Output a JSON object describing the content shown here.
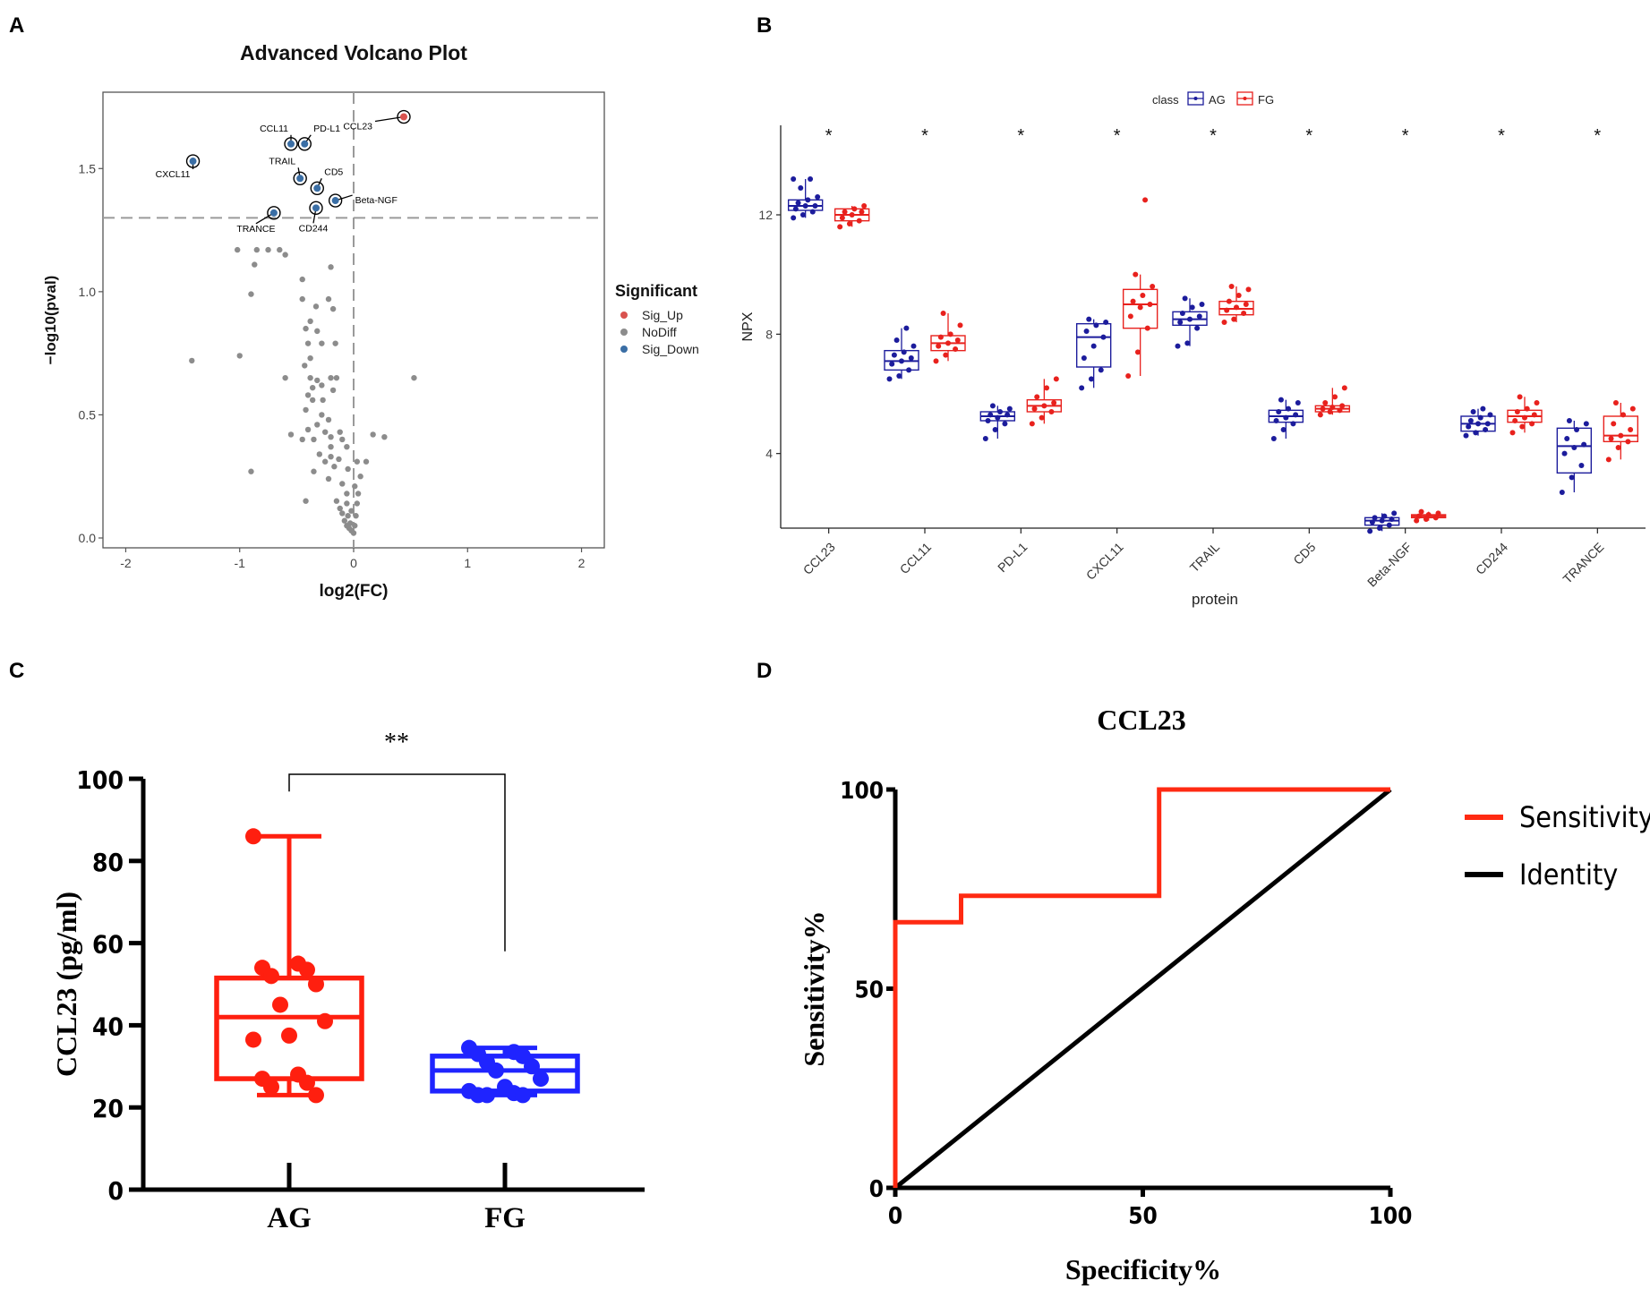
{
  "panels": {
    "A": "A",
    "B": "B",
    "C": "C",
    "D": "D"
  },
  "chart_data": [
    {
      "panel": "A",
      "type": "scatter",
      "title": "Advanced Volcano Plot",
      "xlabel": "log2(FC)",
      "ylabel": "−log10(pval)",
      "xlim": [
        -2.2,
        2.2
      ],
      "ylim": [
        -0.04,
        1.81
      ],
      "xticks": [
        -2,
        -1,
        0,
        1,
        2
      ],
      "yticks": [
        0.0,
        0.5,
        1.0,
        1.5
      ],
      "ytick_labels": [
        "0.0",
        "0.5",
        "1.0",
        "1.5"
      ],
      "hline": 1.3,
      "vline": 0,
      "legend": {
        "title": "Significant",
        "entries": [
          {
            "label": "Sig_Up",
            "color": "#d9534f"
          },
          {
            "label": "NoDiff",
            "color": "#8c8c8c"
          },
          {
            "label": "Sig_Down",
            "color": "#3a6ea5"
          }
        ]
      },
      "labeled_points": [
        {
          "label": "CCL23",
          "x": 0.44,
          "y": 1.71,
          "group": "Sig_Up"
        },
        {
          "label": "CCL11",
          "x": -0.55,
          "y": 1.6,
          "group": "Sig_Down"
        },
        {
          "label": "PD-L1",
          "x": -0.43,
          "y": 1.6,
          "group": "Sig_Down"
        },
        {
          "label": "CXCL11",
          "x": -1.41,
          "y": 1.53,
          "group": "Sig_Down"
        },
        {
          "label": "TRAIL",
          "x": -0.47,
          "y": 1.46,
          "group": "Sig_Down"
        },
        {
          "label": "CD5",
          "x": -0.32,
          "y": 1.42,
          "group": "Sig_Down"
        },
        {
          "label": "Beta-NGF",
          "x": -0.16,
          "y": 1.37,
          "group": "Sig_Down"
        },
        {
          "label": "CD244",
          "x": -0.33,
          "y": 1.34,
          "group": "Sig_Down"
        },
        {
          "label": "TRANCE",
          "x": -0.7,
          "y": 1.32,
          "group": "Sig_Down"
        }
      ],
      "nodiff_points": [
        [
          -1.02,
          1.17
        ],
        [
          -0.85,
          1.17
        ],
        [
          -0.75,
          1.17
        ],
        [
          -0.65,
          1.17
        ],
        [
          -0.6,
          1.15
        ],
        [
          -0.87,
          1.11
        ],
        [
          -0.2,
          1.1
        ],
        [
          -0.45,
          1.05
        ],
        [
          -0.9,
          0.99
        ],
        [
          -0.45,
          0.97
        ],
        [
          -0.22,
          0.97
        ],
        [
          -0.33,
          0.94
        ],
        [
          -0.18,
          0.93
        ],
        [
          -0.38,
          0.88
        ],
        [
          -0.42,
          0.85
        ],
        [
          -0.32,
          0.84
        ],
        [
          -0.28,
          0.79
        ],
        [
          -0.4,
          0.79
        ],
        [
          -0.16,
          0.79
        ],
        [
          -0.38,
          0.73
        ],
        [
          -0.43,
          0.7
        ],
        [
          -1.42,
          0.72
        ],
        [
          -1.0,
          0.74
        ],
        [
          -0.6,
          0.65
        ],
        [
          -0.38,
          0.65
        ],
        [
          -0.32,
          0.64
        ],
        [
          -0.2,
          0.65
        ],
        [
          -0.15,
          0.65
        ],
        [
          -0.36,
          0.61
        ],
        [
          -0.28,
          0.62
        ],
        [
          -0.18,
          0.6
        ],
        [
          -0.4,
          0.58
        ],
        [
          -0.36,
          0.56
        ],
        [
          -0.27,
          0.56
        ],
        [
          0.53,
          0.65
        ],
        [
          -0.42,
          0.52
        ],
        [
          -0.28,
          0.5
        ],
        [
          -0.22,
          0.48
        ],
        [
          -0.32,
          0.46
        ],
        [
          -0.4,
          0.44
        ],
        [
          -0.25,
          0.43
        ],
        [
          -0.2,
          0.41
        ],
        [
          -0.12,
          0.43
        ],
        [
          -0.55,
          0.42
        ],
        [
          -0.45,
          0.4
        ],
        [
          -0.35,
          0.4
        ],
        [
          -0.1,
          0.4
        ],
        [
          0.27,
          0.41
        ],
        [
          -0.2,
          0.37
        ],
        [
          -0.06,
          0.37
        ],
        [
          0.17,
          0.42
        ],
        [
          -0.3,
          0.34
        ],
        [
          -0.2,
          0.33
        ],
        [
          -0.13,
          0.32
        ],
        [
          -0.25,
          0.31
        ],
        [
          0.03,
          0.31
        ],
        [
          0.11,
          0.31
        ],
        [
          -0.17,
          0.29
        ],
        [
          -0.05,
          0.28
        ],
        [
          -0.9,
          0.27
        ],
        [
          -0.35,
          0.27
        ],
        [
          0.06,
          0.25
        ],
        [
          -0.22,
          0.24
        ],
        [
          -0.1,
          0.22
        ],
        [
          0.01,
          0.21
        ],
        [
          -0.06,
          0.18
        ],
        [
          0.04,
          0.18
        ],
        [
          -0.15,
          0.15
        ],
        [
          -0.42,
          0.15
        ],
        [
          -0.06,
          0.14
        ],
        [
          0.03,
          0.14
        ],
        [
          -0.12,
          0.12
        ],
        [
          -0.02,
          0.11
        ],
        [
          -0.1,
          0.1
        ],
        [
          -0.05,
          0.09
        ],
        [
          0.02,
          0.09
        ],
        [
          -0.08,
          0.07
        ],
        [
          -0.03,
          0.06
        ],
        [
          0.01,
          0.05
        ],
        [
          -0.04,
          0.04
        ],
        [
          -0.02,
          0.03
        ],
        [
          0.0,
          0.02
        ],
        [
          -0.06,
          0.05
        ]
      ]
    },
    {
      "panel": "B",
      "type": "box",
      "xlabel": "protein",
      "ylabel": "NPX",
      "ylim": [
        1.5,
        15.0
      ],
      "yticks": [
        4,
        8,
        12
      ],
      "legend": {
        "title": "class",
        "entries": [
          {
            "label": "AG",
            "color": "#1c1c9c"
          },
          {
            "label": "FG",
            "color": "#e8211d"
          }
        ]
      },
      "significance": "*",
      "categories": [
        "CCL23",
        "CCL11",
        "PD-L1",
        "CXCL11",
        "TRAIL",
        "CD5",
        "Beta-NGF",
        "CD244",
        "TRANCE"
      ],
      "series": [
        {
          "name": "AG",
          "boxes": [
            {
              "whisker_low": 11.9,
              "q1": 12.15,
              "median": 12.3,
              "q3": 12.5,
              "whisker_high": 13.2,
              "points": [
                11.9,
                12.0,
                12.1,
                12.2,
                12.3,
                12.3,
                12.4,
                12.5,
                12.6,
                12.9,
                13.2,
                13.2
              ]
            },
            {
              "whisker_low": 6.5,
              "q1": 6.8,
              "median": 7.1,
              "q3": 7.45,
              "whisker_high": 8.2,
              "points": [
                6.5,
                6.6,
                6.8,
                7.0,
                7.1,
                7.2,
                7.3,
                7.4,
                7.6,
                7.8,
                8.2
              ]
            },
            {
              "whisker_low": 4.5,
              "q1": 5.1,
              "median": 5.25,
              "q3": 5.4,
              "whisker_high": 5.6,
              "points": [
                4.5,
                4.8,
                5.0,
                5.1,
                5.2,
                5.3,
                5.3,
                5.4,
                5.5,
                5.6
              ]
            },
            {
              "whisker_low": 6.2,
              "q1": 6.9,
              "median": 7.9,
              "q3": 8.35,
              "whisker_high": 8.5,
              "points": [
                6.2,
                6.5,
                6.8,
                7.2,
                7.6,
                7.9,
                8.1,
                8.3,
                8.4,
                8.5
              ]
            },
            {
              "whisker_low": 7.6,
              "q1": 8.3,
              "median": 8.5,
              "q3": 8.75,
              "whisker_high": 9.2,
              "points": [
                7.6,
                7.7,
                8.2,
                8.4,
                8.5,
                8.6,
                8.7,
                8.9,
                9.0,
                9.2
              ]
            },
            {
              "whisker_low": 4.5,
              "q1": 5.05,
              "median": 5.25,
              "q3": 5.45,
              "whisker_high": 5.8,
              "points": [
                4.5,
                4.8,
                5.0,
                5.1,
                5.2,
                5.3,
                5.4,
                5.5,
                5.7,
                5.8
              ]
            },
            {
              "whisker_low": 1.4,
              "q1": 1.6,
              "median": 1.75,
              "q3": 1.85,
              "whisker_high": 2.0,
              "points": [
                1.4,
                1.5,
                1.6,
                1.7,
                1.75,
                1.8,
                1.85,
                1.9,
                2.0
              ]
            },
            {
              "whisker_low": 4.6,
              "q1": 4.75,
              "median": 5.0,
              "q3": 5.25,
              "whisker_high": 5.5,
              "points": [
                4.6,
                4.7,
                4.8,
                4.9,
                5.0,
                5.0,
                5.1,
                5.2,
                5.3,
                5.4,
                5.5
              ]
            },
            {
              "whisker_low": 2.7,
              "q1": 3.35,
              "median": 4.25,
              "q3": 4.85,
              "whisker_high": 5.1,
              "points": [
                2.7,
                3.2,
                3.6,
                4.0,
                4.2,
                4.3,
                4.5,
                4.8,
                5.0,
                5.1
              ]
            }
          ]
        },
        {
          "name": "FG",
          "boxes": [
            {
              "whisker_low": 11.6,
              "q1": 11.8,
              "median": 12.0,
              "q3": 12.2,
              "whisker_high": 12.3,
              "points": [
                11.6,
                11.7,
                11.8,
                11.9,
                12.0,
                12.1,
                12.1,
                12.2,
                12.3
              ]
            },
            {
              "whisker_low": 7.1,
              "q1": 7.45,
              "median": 7.7,
              "q3": 7.95,
              "whisker_high": 8.7,
              "points": [
                7.1,
                7.3,
                7.5,
                7.6,
                7.7,
                7.8,
                7.9,
                8.0,
                8.3,
                8.7
              ]
            },
            {
              "whisker_low": 5.0,
              "q1": 5.4,
              "median": 5.6,
              "q3": 5.8,
              "whisker_high": 6.5,
              "points": [
                5.0,
                5.2,
                5.4,
                5.5,
                5.6,
                5.7,
                5.9,
                6.2,
                6.5
              ]
            },
            {
              "whisker_low": 6.6,
              "q1": 8.2,
              "median": 9.0,
              "q3": 9.5,
              "whisker_high": 10.0,
              "points": [
                6.6,
                7.4,
                8.2,
                8.6,
                8.9,
                9.0,
                9.1,
                9.3,
                9.6,
                10.0,
                12.5
              ]
            },
            {
              "whisker_low": 8.4,
              "q1": 8.65,
              "median": 8.85,
              "q3": 9.1,
              "whisker_high": 9.6,
              "points": [
                8.4,
                8.5,
                8.7,
                8.8,
                8.9,
                9.0,
                9.1,
                9.3,
                9.5,
                9.6
              ]
            },
            {
              "whisker_low": 5.3,
              "q1": 5.4,
              "median": 5.5,
              "q3": 5.6,
              "whisker_high": 6.2,
              "points": [
                5.3,
                5.4,
                5.45,
                5.5,
                5.55,
                5.6,
                5.7,
                5.9,
                6.2
              ]
            },
            {
              "whisker_low": 1.75,
              "q1": 1.85,
              "median": 1.9,
              "q3": 1.95,
              "whisker_high": 2.05,
              "points": [
                1.75,
                1.8,
                1.85,
                1.9,
                1.95,
                2.0,
                2.05
              ]
            },
            {
              "whisker_low": 4.7,
              "q1": 5.05,
              "median": 5.25,
              "q3": 5.45,
              "whisker_high": 5.9,
              "points": [
                4.7,
                4.9,
                5.0,
                5.1,
                5.2,
                5.3,
                5.4,
                5.5,
                5.7,
                5.9
              ]
            },
            {
              "whisker_low": 3.8,
              "q1": 4.4,
              "median": 4.6,
              "q3": 5.25,
              "whisker_high": 5.7,
              "points": [
                3.8,
                4.2,
                4.4,
                4.5,
                4.6,
                4.8,
                5.0,
                5.3,
                5.5,
                5.7
              ]
            }
          ]
        }
      ]
    },
    {
      "panel": "C",
      "type": "box",
      "ylabel": "CCL23 (pg/ml)",
      "ylim": [
        0,
        100
      ],
      "yticks": [
        0,
        20,
        40,
        60,
        80,
        100
      ],
      "categories": [
        "AG",
        "FG"
      ],
      "significance": "**",
      "series": [
        {
          "name": "AG",
          "color": "#ff1f0f",
          "min": 23,
          "q1": 27,
          "median": 42,
          "q3": 51.5,
          "max": 86,
          "points": [
            86,
            55,
            54,
            53.5,
            52,
            50,
            45,
            41,
            37.5,
            36.5,
            28,
            27,
            26,
            25,
            23
          ]
        },
        {
          "name": "FG",
          "color": "#1f24ff",
          "min": 23,
          "q1": 24,
          "median": 29,
          "q3": 32.5,
          "max": 34.5,
          "points": [
            34.5,
            33.5,
            33,
            32.5,
            31,
            30,
            29,
            27,
            25,
            24,
            23.5,
            23,
            23,
            23
          ]
        }
      ]
    },
    {
      "panel": "D",
      "type": "line",
      "title": "CCL23",
      "xlabel": "Specificity%",
      "ylabel": "Sensitivity%",
      "xlim": [
        0,
        100
      ],
      "ylim": [
        0,
        100
      ],
      "xticks": [
        0,
        50,
        100
      ],
      "yticks": [
        0,
        50,
        100
      ],
      "series": [
        {
          "name": "Sensitivity",
          "color": "#ff2a12",
          "points": [
            [
              0,
              0
            ],
            [
              0,
              66.7
            ],
            [
              13.3,
              66.7
            ],
            [
              13.3,
              73.3
            ],
            [
              53.3,
              73.3
            ],
            [
              53.3,
              100
            ],
            [
              100,
              100
            ]
          ]
        },
        {
          "name": "Identity",
          "color": "#000000",
          "points": [
            [
              0,
              0
            ],
            [
              100,
              100
            ]
          ]
        }
      ]
    }
  ]
}
